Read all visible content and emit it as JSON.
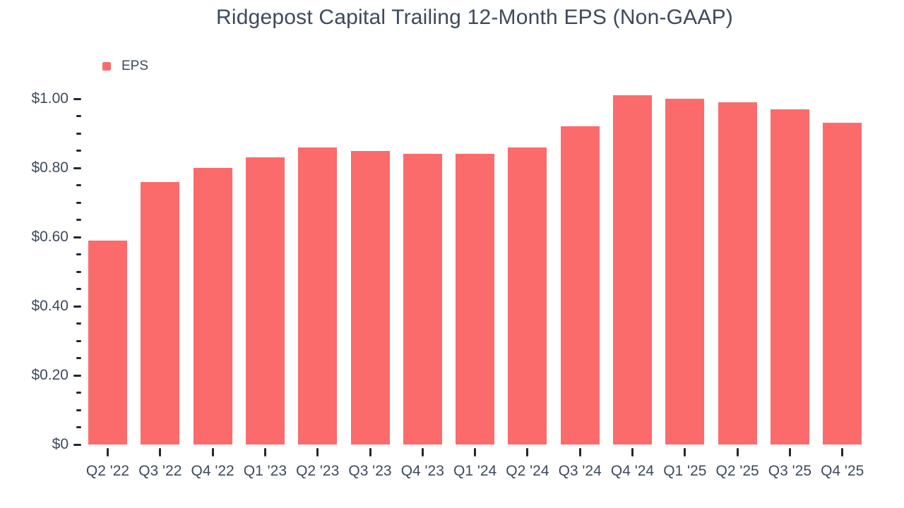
{
  "colors": {
    "background": "#FFFFFF",
    "bar": "#FB6B6B",
    "text": "#3E4A5B",
    "tick_mark": "#23272F"
  },
  "chart_data": {
    "type": "bar",
    "title": "Ridgepost Capital Trailing 12-Month EPS (Non-GAAP)",
    "xlabel": "",
    "ylabel": "",
    "categories": [
      "Q2 '22",
      "Q3 '22",
      "Q4 '22",
      "Q1 '23",
      "Q2 '23",
      "Q3 '23",
      "Q4 '23",
      "Q1 '24",
      "Q2 '24",
      "Q3 '24",
      "Q4 '24",
      "Q1 '25",
      "Q2 '25",
      "Q3 '25",
      "Q4 '25"
    ],
    "series": [
      {
        "name": "EPS",
        "color": "#FB6B6B",
        "values": [
          0.59,
          0.76,
          0.8,
          0.83,
          0.86,
          0.85,
          0.84,
          0.84,
          0.86,
          0.92,
          1.01,
          1.0,
          0.99,
          0.97,
          0.93
        ]
      }
    ],
    "ylim": [
      0,
      1.0
    ],
    "y_major_tick_step": 0.2,
    "y_minor_tick_step": 0.05,
    "y_tick_labels": [
      "$0",
      "$0.20",
      "$0.40",
      "$0.60",
      "$0.80",
      "$1.00"
    ],
    "grid": false,
    "legend_position": "top-left",
    "currency_prefix": "$"
  }
}
